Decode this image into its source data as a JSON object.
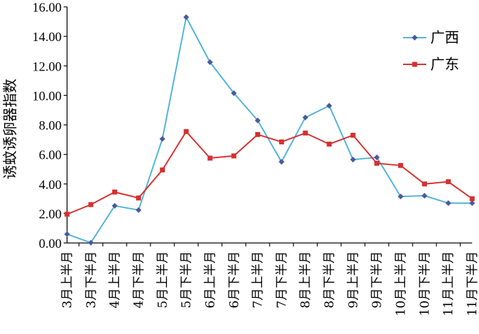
{
  "chart_data": {
    "type": "line",
    "title": "",
    "xlabel": "",
    "ylabel": "诱蚊诱卵器指数",
    "ylim": [
      0,
      16
    ],
    "yticks": [
      "0.00",
      "2.00",
      "4.00",
      "6.00",
      "8.00",
      "10.00",
      "12.00",
      "14.00",
      "16.00"
    ],
    "grid": false,
    "legend_position": "top-right",
    "categories": [
      "3月上半月",
      "3月下半月",
      "4月上半月",
      "4月下半月",
      "5月上半月",
      "5月下半月",
      "6月上半月",
      "6月下半月",
      "7月上半月",
      "7月下半月",
      "8月上半月",
      "8月下半月",
      "9月上半月",
      "9月下半月",
      "10月上半月",
      "10月下半月",
      "11月上半月",
      "11月下半月"
    ],
    "series": [
      {
        "name": "广西",
        "color": "#4fb3d9",
        "marker": "diamond",
        "marker_color": "#4a5a9c",
        "values": [
          0.6,
          0.02,
          2.52,
          2.23,
          7.05,
          15.3,
          12.25,
          10.15,
          8.3,
          5.5,
          8.5,
          9.3,
          5.65,
          5.8,
          3.15,
          3.2,
          2.7,
          2.7
        ]
      },
      {
        "name": "广东",
        "color": "#d62f2f",
        "marker": "square",
        "marker_color": "#d62f2f",
        "values": [
          1.95,
          2.6,
          3.45,
          3.05,
          4.95,
          7.55,
          5.75,
          5.9,
          7.35,
          6.85,
          7.45,
          6.7,
          7.3,
          5.4,
          5.25,
          4.0,
          4.15,
          3.0
        ]
      }
    ]
  }
}
